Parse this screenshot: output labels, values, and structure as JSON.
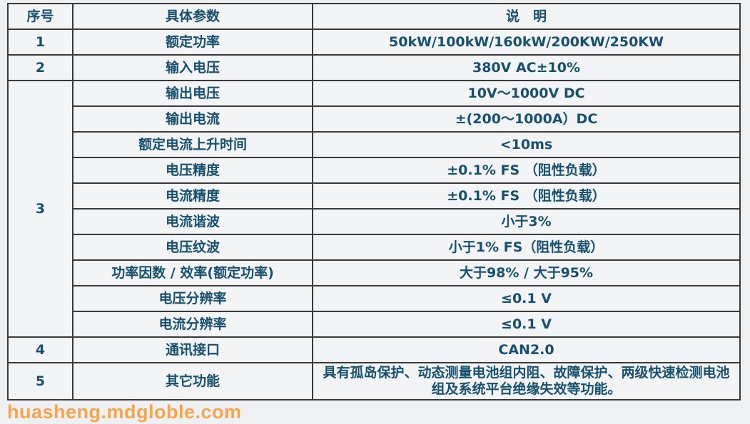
{
  "header": {
    "no": "序号",
    "param": "具体参数",
    "desc": "说　明"
  },
  "rows": [
    {
      "no": "1",
      "param": "额定功率",
      "desc": "50kW/100kW/160kW/200KW/250KW"
    },
    {
      "no": "2",
      "param": "输入电压",
      "desc": "380V AC±10%"
    },
    {
      "no": "3",
      "param": "输出电压",
      "desc": "10V～1000V DC"
    },
    {
      "param": "输出电流",
      "desc": "±(200～1000A）DC"
    },
    {
      "param": "额定电流上升时间",
      "desc": "<10ms"
    },
    {
      "param": "电压精度",
      "desc": "±0.1% FS （阻性负载）"
    },
    {
      "param": "电流精度",
      "desc": "±0.1% FS （阻性负载）"
    },
    {
      "param": "电流谐波",
      "desc": "小于3%"
    },
    {
      "param": "电压纹波",
      "desc": "小于1% FS（阻性负载）"
    },
    {
      "param": "功率因数 / 效率(额定功率)",
      "desc": "大于98% / 大于95%"
    },
    {
      "param": "电压分辨率",
      "desc": "≤0.1 V"
    },
    {
      "param": "电流分辨率",
      "desc": "≤0.1 V"
    },
    {
      "no": "4",
      "param": "通讯接口",
      "desc": "CAN2.0"
    },
    {
      "no": "5",
      "param": "其它功能",
      "desc": "具有孤岛保护、动态测量电池组内阻、故障保护、两级快速检测电池组及系统平台绝缘失效等功能。"
    }
  ],
  "watermark": "huasheng.mdgloble.com",
  "colors": {
    "text": "#17506f",
    "border": "#3a3a3a",
    "watermark": "#f7a54c"
  }
}
